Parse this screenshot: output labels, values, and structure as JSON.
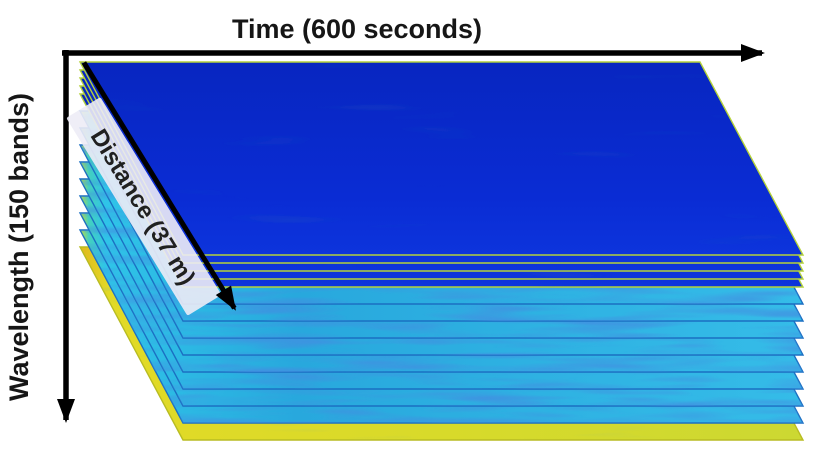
{
  "figure": {
    "background": "#ffffff",
    "axes": {
      "time": {
        "label": "Time (600 seconds)",
        "value": 600,
        "unit": "seconds"
      },
      "wavelength": {
        "label": "Wavelength (150 bands)",
        "value": 150,
        "unit": "bands"
      },
      "distance": {
        "label": "Distance (37 m)",
        "value": 37,
        "unit": "m"
      }
    },
    "colors": {
      "arrow": "#000000",
      "label_text": "#161616",
      "distance_band_bg": "#edecf6",
      "blue_slice_top": "#0826c0",
      "blue_slice_bottom": "#0d34dc",
      "cyan_slice": "#28a8dd",
      "cyan_slice_bright": "#2fc4e8",
      "cyan_left_edge": "#c8df38",
      "cyan_teal_edge": "#44d0be",
      "yellow_slice": "#d8da2a",
      "yellow_slice_left": "#e0b81e",
      "slice_edge_blue_bands": "#b5d23a",
      "slice_edge_cyan_bands": "#1b6fc2",
      "slice_edge_yellow_band": "#b8bc22"
    },
    "stack": {
      "description": "Stacked hyperspectral band images forming a data cube",
      "num_slices_visible": 14,
      "slices": [
        {
          "band": "blue"
        },
        {
          "band": "blue"
        },
        {
          "band": "blue"
        },
        {
          "band": "blue"
        },
        {
          "band": "blue"
        },
        {
          "band": "cyan"
        },
        {
          "band": "cyan"
        },
        {
          "band": "cyan"
        },
        {
          "band": "cyan"
        },
        {
          "band": "cyan"
        },
        {
          "band": "cyan"
        },
        {
          "band": "cyan"
        },
        {
          "band": "cyan"
        },
        {
          "band": "yellow"
        }
      ]
    }
  }
}
